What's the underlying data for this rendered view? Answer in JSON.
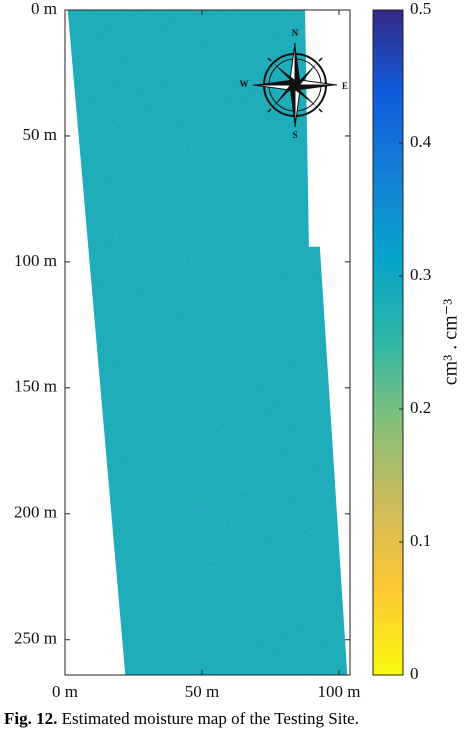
{
  "chart_data": {
    "type": "map",
    "xlim": [
      0,
      104
    ],
    "ylim": [
      0,
      264
    ],
    "yreverse": true,
    "xticks": [
      {
        "value": 0,
        "label": "0 m"
      },
      {
        "value": 50,
        "label": "50 m"
      },
      {
        "value": 100,
        "label": "100 m"
      }
    ],
    "yticks": [
      {
        "value": 0,
        "label": "0 m"
      },
      {
        "value": 50,
        "label": "50 m"
      },
      {
        "value": 100,
        "label": "100 m"
      },
      {
        "value": 150,
        "label": "150 m"
      },
      {
        "value": 200,
        "label": "200 m"
      },
      {
        "value": 250,
        "label": "250 m"
      }
    ],
    "field": {
      "outline_x": [
        1,
        87.6,
        89,
        93,
        103,
        22
      ],
      "outline_y": [
        0,
        0,
        94,
        94,
        264,
        264
      ],
      "value": 0.28
    },
    "colorbar": {
      "clim": [
        0,
        0.5
      ],
      "ticks": [
        0,
        0.1,
        0.2,
        0.3,
        0.4,
        0.5
      ],
      "label": "cm³ . cm⁻³",
      "colormap": [
        "#f9fb0e",
        "#fec832",
        "#d1bb59",
        "#87bf77",
        "#2eb7a4",
        "#06a4ca",
        "#1481d6",
        "#0f5cdd",
        "#352a87"
      ]
    },
    "compass": [
      "N",
      "E",
      "S",
      "W"
    ]
  },
  "caption": {
    "label": "Fig. 12.",
    "text": "Estimated moisture map of the Testing Site."
  }
}
